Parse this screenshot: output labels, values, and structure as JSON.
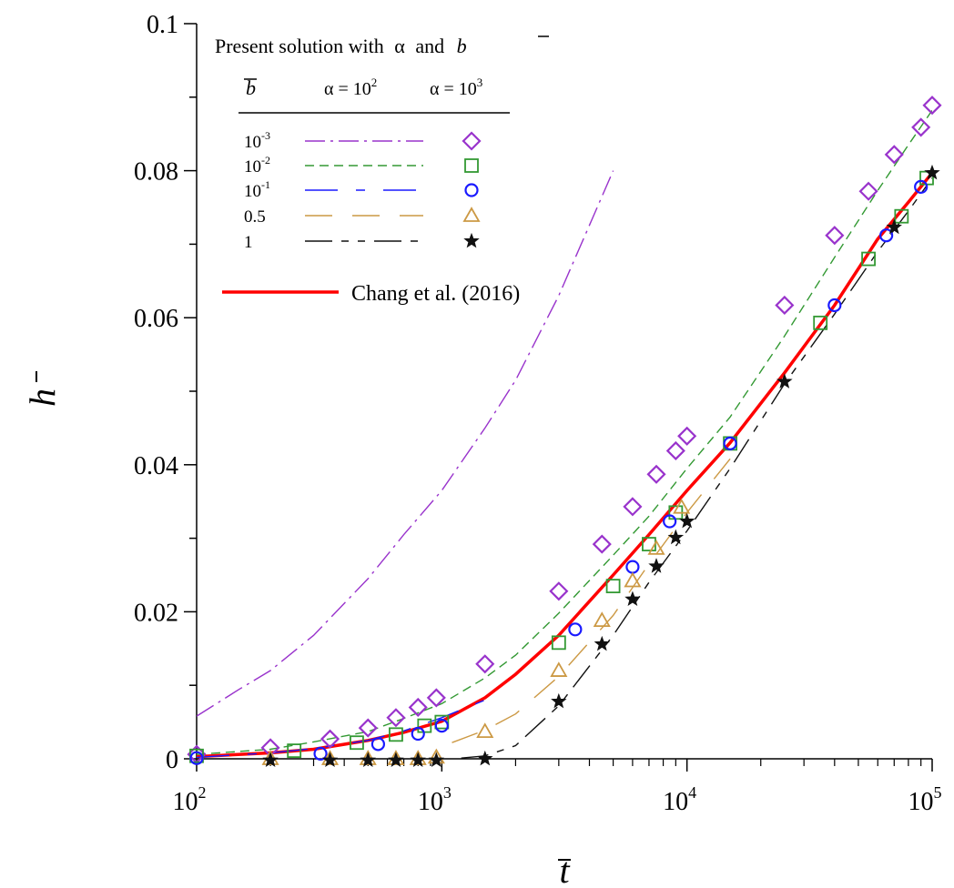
{
  "chart_data": {
    "type": "line",
    "title": "",
    "xlabel": "t",
    "ylabel": "h",
    "xscale": "log",
    "xlim": [
      100,
      100000
    ],
    "ylim": [
      0,
      0.1
    ],
    "grid": false,
    "legend_position": "top-left",
    "x_ticks": [
      {
        "value": 100,
        "base": "10",
        "exp": "2"
      },
      {
        "value": 1000,
        "base": "10",
        "exp": "3"
      },
      {
        "value": 10000,
        "base": "10",
        "exp": "4"
      },
      {
        "value": 100000,
        "base": "10",
        "exp": "5"
      }
    ],
    "y_ticks": [
      {
        "value": 0,
        "label": "0"
      },
      {
        "value": 0.02,
        "label": "0.02"
      },
      {
        "value": 0.04,
        "label": "0.04"
      },
      {
        "value": 0.06,
        "label": "0.06"
      },
      {
        "value": 0.08,
        "label": "0.08"
      },
      {
        "value": 0.1,
        "label": "0.1"
      }
    ],
    "legend": {
      "heading_prefix": "Present solution with",
      "heading_alpha": "α",
      "heading_and": "and",
      "heading_b": "b",
      "col_b": "b",
      "col_alpha1_prefix": "α = 10",
      "col_alpha1_exp": "2",
      "col_alpha2_prefix": "α = 10",
      "col_alpha2_exp": "3",
      "rows": [
        {
          "b_base": "10",
          "b_exp": "-3",
          "color": "#9933cc",
          "dash": "22,6,3,6",
          "marker": "diamond"
        },
        {
          "b_base": "10",
          "b_exp": "-2",
          "color": "#339933",
          "dash": "10,6",
          "marker": "square"
        },
        {
          "b_base": "10",
          "b_exp": "-1",
          "color": "#1a1aff",
          "dash": "36,20,10,20",
          "marker": "circle"
        },
        {
          "b_base": "0.5",
          "b_exp": "",
          "color": "#cc9944",
          "dash": "30,22",
          "marker": "triangle"
        },
        {
          "b_base": "1",
          "b_exp": "",
          "color": "#111111",
          "dash": "30,10,8,10,8,10",
          "marker": "star"
        }
      ],
      "reference_label": "Chang et al. (2016)",
      "reference_color": "#ff0000"
    },
    "series": [
      {
        "name": "Chang et al. (2016)",
        "color": "#ff0000",
        "style": "solid",
        "x": [
          100,
          200,
          300,
          500,
          700,
          1000,
          1500,
          2000,
          3000,
          5000,
          7000,
          10000,
          15000,
          25000,
          40000,
          60000,
          80000,
          100000
        ],
        "y": [
          0.0003,
          0.0008,
          0.0013,
          0.0025,
          0.0036,
          0.0051,
          0.0083,
          0.0115,
          0.0168,
          0.025,
          0.0305,
          0.0365,
          0.043,
          0.0525,
          0.0617,
          0.0707,
          0.0757,
          0.0797
        ]
      },
      {
        "name": "",
        "color": "#9933cc",
        "dash": "22,6,3,6",
        "x": [
          100,
          150,
          200,
          300,
          500,
          700,
          1000,
          1500,
          2000,
          3000,
          5000
        ],
        "y": [
          0.0058,
          0.0095,
          0.012,
          0.0168,
          0.0245,
          0.0305,
          0.0365,
          0.045,
          0.0515,
          0.063,
          0.08
        ]
      },
      {
        "name": "",
        "color": "#339933",
        "dash": "10,6",
        "x": [
          100,
          200,
          300,
          500,
          700,
          1000,
          1500,
          2000,
          3000,
          5000,
          7000,
          10000,
          15000,
          25000,
          40000,
          60000,
          80000,
          100000
        ],
        "y": [
          0.0006,
          0.0013,
          0.0023,
          0.0037,
          0.0055,
          0.0075,
          0.011,
          0.0141,
          0.0198,
          0.0277,
          0.033,
          0.0395,
          0.0465,
          0.0575,
          0.0682,
          0.0773,
          0.0835,
          0.0882
        ]
      },
      {
        "name": "",
        "color": "#1a1aff",
        "dash": "36,20,10,20",
        "x": [
          100,
          200,
          300,
          500,
          700,
          1000,
          1500
        ],
        "y": [
          0.0002,
          0.0008,
          0.0014,
          0.0025,
          0.0038,
          0.0056,
          0.008
        ]
      },
      {
        "name": "",
        "color": "#cc9944",
        "dash": "30,22",
        "x": [
          1100,
          1500,
          2000,
          3000,
          5000,
          7000,
          10000,
          15000
        ],
        "y": [
          0.0022,
          0.0039,
          0.0061,
          0.0112,
          0.0195,
          0.0265,
          0.0335,
          0.0408
        ]
      },
      {
        "name": "",
        "color": "#111111",
        "dash": "30,10,8,10,8,10",
        "x": [
          1200,
          1500,
          2000,
          3000,
          5000,
          7000,
          10000,
          15000,
          25000,
          40000,
          60000,
          80000,
          100000
        ],
        "y": [
          0.0001,
          0.0004,
          0.0018,
          0.0072,
          0.0168,
          0.024,
          0.031,
          0.0395,
          0.051,
          0.0605,
          0.069,
          0.0745,
          0.079
        ]
      }
    ],
    "markers": [
      {
        "shape": "diamond",
        "color": "#9933cc",
        "x": [
          100,
          200,
          350,
          500,
          650,
          800,
          950,
          1500,
          3000,
          4500,
          6000,
          7500,
          9000,
          10000,
          25000,
          40000,
          55000,
          70000,
          90000,
          100000
        ],
        "y": [
          0.0006,
          0.0015,
          0.0027,
          0.0042,
          0.0056,
          0.007,
          0.0083,
          0.0129,
          0.0228,
          0.0292,
          0.0343,
          0.0387,
          0.0419,
          0.0439,
          0.0617,
          0.0712,
          0.0772,
          0.0822,
          0.0859,
          0.0889
        ]
      },
      {
        "shape": "square",
        "color": "#339933",
        "x": [
          100,
          250,
          450,
          650,
          850,
          1000,
          3000,
          5000,
          7000,
          9000,
          15000,
          35000,
          55000,
          75000,
          95000
        ],
        "y": [
          0.0004,
          0.0011,
          0.0022,
          0.0033,
          0.0045,
          0.005,
          0.0158,
          0.0235,
          0.0292,
          0.0335,
          0.0429,
          0.0593,
          0.068,
          0.0738,
          0.079
        ]
      },
      {
        "shape": "circle",
        "color": "#1a1aff",
        "x": [
          100,
          320,
          550,
          800,
          1000,
          3500,
          6000,
          8500,
          15000,
          40000,
          65000,
          90000
        ],
        "y": [
          0.0001,
          0.0007,
          0.002,
          0.0034,
          0.0045,
          0.0176,
          0.0261,
          0.0323,
          0.0429,
          0.0617,
          0.0712,
          0.0778
        ]
      },
      {
        "shape": "triangle",
        "color": "#cc9944",
        "x": [
          200,
          350,
          500,
          650,
          800,
          950,
          1500,
          3000,
          4500,
          6000,
          7500,
          9500
        ],
        "y": [
          0.0,
          0.0,
          0.0,
          0.0,
          0.0,
          0.0002,
          0.0037,
          0.012,
          0.0188,
          0.0242,
          0.0286,
          0.0342
        ]
      },
      {
        "shape": "star",
        "color": "#111111",
        "x": [
          200,
          350,
          500,
          650,
          800,
          950,
          1500,
          3000,
          4500,
          6000,
          7500,
          9000,
          10000,
          25000,
          70000,
          100000
        ],
        "y": [
          -0.0002,
          -0.0002,
          -0.0002,
          -0.0002,
          -0.0002,
          -0.0002,
          0.0,
          0.0078,
          0.0156,
          0.0217,
          0.0262,
          0.0301,
          0.0323,
          0.0513,
          0.0723,
          0.0797
        ]
      }
    ]
  }
}
